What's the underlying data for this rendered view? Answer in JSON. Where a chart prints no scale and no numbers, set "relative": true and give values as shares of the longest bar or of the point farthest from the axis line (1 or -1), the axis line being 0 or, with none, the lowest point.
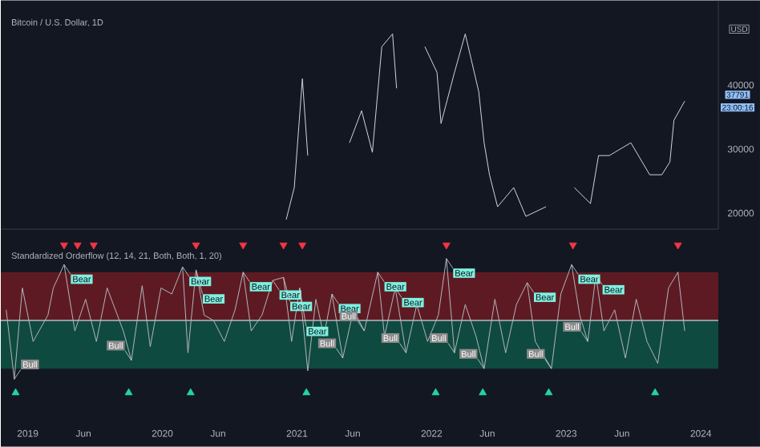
{
  "chart_data": [
    {
      "type": "line",
      "title": "Bitcoin / U.S. Dollar, 1D",
      "xlim": [
        2018.8,
        2024.13
      ],
      "ylim": [
        17500,
        53250
      ],
      "yticks": [
        20000,
        30000,
        40000
      ],
      "tick_labels": "y",
      "x": [
        2020.92,
        2020.98,
        2021.04,
        2021.08,
        2021.12,
        2021.39,
        2021.48,
        2021.56,
        2021.63,
        2021.71,
        2021.74,
        2021.8,
        2021.95,
        2022.04,
        2022.07,
        2022.17,
        2022.25,
        2022.35,
        2022.39,
        2022.43,
        2022.49,
        2022.61,
        2022.7,
        2022.85,
        2022.9,
        2023.06,
        2023.18,
        2023.24,
        2023.32,
        2023.48,
        2023.62,
        2023.71,
        2023.77,
        2023.8,
        2023.88
      ],
      "series": [
        {
          "color": "#d1d4dc",
          "values": [
            19000,
            24000,
            41000,
            29000,
            null,
            31000,
            36000,
            29500,
            46000,
            48000,
            39500,
            null,
            46000,
            42000,
            34000,
            42000,
            48000,
            39000,
            31000,
            26000,
            21000,
            24000,
            19500,
            21000,
            null,
            24000,
            21500,
            29000,
            29000,
            31000,
            26000,
            26000,
            28000,
            34500,
            37500
          ]
        }
      ],
      "annotations": [
        "USD",
        "37791",
        "23:00:16"
      ]
    },
    {
      "type": "line",
      "title": "Standardized Orderflow (12, 14, 21, Both, Both, 1, 20)",
      "relative": true,
      "tick_labels": "x",
      "xlim": [
        2018.8,
        2024.13
      ],
      "xticks": [
        {
          "value": 2019,
          "label": "2019"
        },
        {
          "value": 2019.414,
          "label": "Jun"
        },
        {
          "value": 2020,
          "label": "2020"
        },
        {
          "value": 2020.414,
          "label": "Jun"
        },
        {
          "value": 2021,
          "label": "2021"
        },
        {
          "value": 2021.414,
          "label": "Jun"
        },
        {
          "value": 2022,
          "label": "2022"
        },
        {
          "value": 2022.414,
          "label": "Jun"
        },
        {
          "value": 2023,
          "label": "2023"
        },
        {
          "value": 2023.414,
          "label": "Jun"
        },
        {
          "value": 2024,
          "label": "2024"
        }
      ],
      "bands": [
        {
          "axis": "y",
          "from": 0,
          "to": 0.64,
          "color": "#5e1a22"
        },
        {
          "axis": "y",
          "from": -0.64,
          "to": 0,
          "color": "#0f4a40"
        }
      ],
      "ref_lines": [
        {
          "axis": "y",
          "value": 0,
          "color": "#9598a1"
        }
      ],
      "series": [
        {
          "color": "#b2b5be",
          "x": [
            2018.84,
            2018.9,
            2018.96,
            2019.04,
            2019.15,
            2019.19,
            2019.27,
            2019.35,
            2019.43,
            2019.51,
            2019.59,
            2019.71,
            2019.77,
            2019.85,
            2019.91,
            2019.99,
            2020.07,
            2020.15,
            2020.19,
            2020.25,
            2020.31,
            2020.38,
            2020.46,
            2020.54,
            2020.6,
            2020.66,
            2020.74,
            2020.82,
            2020.9,
            2020.96,
            2021.02,
            2021.08,
            2021.14,
            2021.2,
            2021.26,
            2021.34,
            2021.42,
            2021.5,
            2021.6,
            2021.65,
            2021.73,
            2021.81,
            2021.89,
            2021.97,
            2022.05,
            2022.11,
            2022.17,
            2022.25,
            2022.33,
            2022.39,
            2022.47,
            2022.55,
            2022.63,
            2022.71,
            2022.77,
            2022.89,
            2022.96,
            2023.04,
            2023.1,
            2023.16,
            2023.22,
            2023.28,
            2023.36,
            2023.44,
            2023.52,
            2023.6,
            2023.68,
            2023.76,
            2023.83,
            2023.88
          ],
          "values": [
            0.14,
            -0.78,
            0.43,
            -0.28,
            0.07,
            0.43,
            0.74,
            -0.14,
            0.28,
            -0.28,
            0.43,
            -0.14,
            -0.53,
            0.46,
            -0.35,
            0.43,
            0.35,
            0.71,
            -0.43,
            0.67,
            0.07,
            0.0,
            -0.28,
            0.14,
            0.64,
            -0.14,
            0.07,
            0.53,
            0.57,
            -0.28,
            0.43,
            -0.67,
            0.28,
            -0.21,
            0.35,
            -0.5,
            0.14,
            -0.14,
            0.64,
            -0.21,
            0.43,
            -0.43,
            0.21,
            -0.28,
            0.07,
            0.82,
            -0.43,
            0.21,
            -0.21,
            -0.64,
            0.28,
            -0.43,
            0.21,
            0.5,
            -0.28,
            -0.64,
            0.35,
            0.74,
            0.07,
            -0.28,
            0.6,
            -0.14,
            0.14,
            -0.5,
            0.28,
            -0.28,
            -0.57,
            0.43,
            0.64,
            -0.14
          ]
        },
        {
          "type": "scatter",
          "marker": "triangle",
          "color": "#f23645",
          "x": [
            2019.27,
            2019.37,
            2019.49,
            2020.25,
            2020.6,
            2020.9,
            2021.04,
            2022.11,
            2023.05,
            2023.83
          ],
          "values": [
            1,
            1,
            1,
            1,
            1,
            1,
            1,
            1,
            1,
            1
          ]
        },
        {
          "type": "scatter",
          "marker": "triangle",
          "color": "#22d3a6",
          "x": [
            2018.91,
            2019.75,
            2020.21,
            2021.07,
            2022.03,
            2022.38,
            2022.87,
            2023.66
          ],
          "values": [
            -0.96,
            -0.96,
            -0.96,
            -0.96,
            -0.96,
            -0.96,
            -0.96,
            -0.96
          ]
        }
      ],
      "annotations": [
        {
          "text": "Bear",
          "x": 2019.27,
          "y": 0.74
        },
        {
          "text": "Bear",
          "x": 2020.15,
          "y": 0.71
        },
        {
          "text": "Bear",
          "x": 2020.25,
          "y": 0.67
        },
        {
          "text": "Bear",
          "x": 2020.6,
          "y": 0.64
        },
        {
          "text": "Bear",
          "x": 2020.82,
          "y": 0.53
        },
        {
          "text": "Bear",
          "x": 2020.9,
          "y": 0.57
        },
        {
          "text": "Bear",
          "x": 2021.02,
          "y": 0.43
        },
        {
          "text": "Bear",
          "x": 2021.26,
          "y": 0.35
        },
        {
          "text": "Bear",
          "x": 2021.6,
          "y": 0.64
        },
        {
          "text": "Bear",
          "x": 2021.73,
          "y": 0.43
        },
        {
          "text": "Bear",
          "x": 2022.11,
          "y": 0.82
        },
        {
          "text": "Bear",
          "x": 2022.71,
          "y": 0.5
        },
        {
          "text": "Bear",
          "x": 2023.04,
          "y": 0.74
        },
        {
          "text": "Bear",
          "x": 2023.22,
          "y": 0.6
        },
        {
          "text": "Bull",
          "x": 2018.9,
          "y": -0.78
        },
        {
          "text": "Bull",
          "x": 2019.77,
          "y": -0.53
        },
        {
          "text": "Bull",
          "x": 2021.34,
          "y": -0.5
        },
        {
          "text": "Bull",
          "x": 2021.5,
          "y": -0.14
        },
        {
          "text": "Bull",
          "x": 2021.81,
          "y": -0.43
        },
        {
          "text": "Bull",
          "x": 2022.17,
          "y": -0.43
        },
        {
          "text": "Bull",
          "x": 2022.39,
          "y": -0.64
        },
        {
          "text": "Bull",
          "x": 2022.89,
          "y": -0.64
        },
        {
          "text": "Bull",
          "x": 2023.16,
          "y": -0.28
        }
      ]
    }
  ]
}
